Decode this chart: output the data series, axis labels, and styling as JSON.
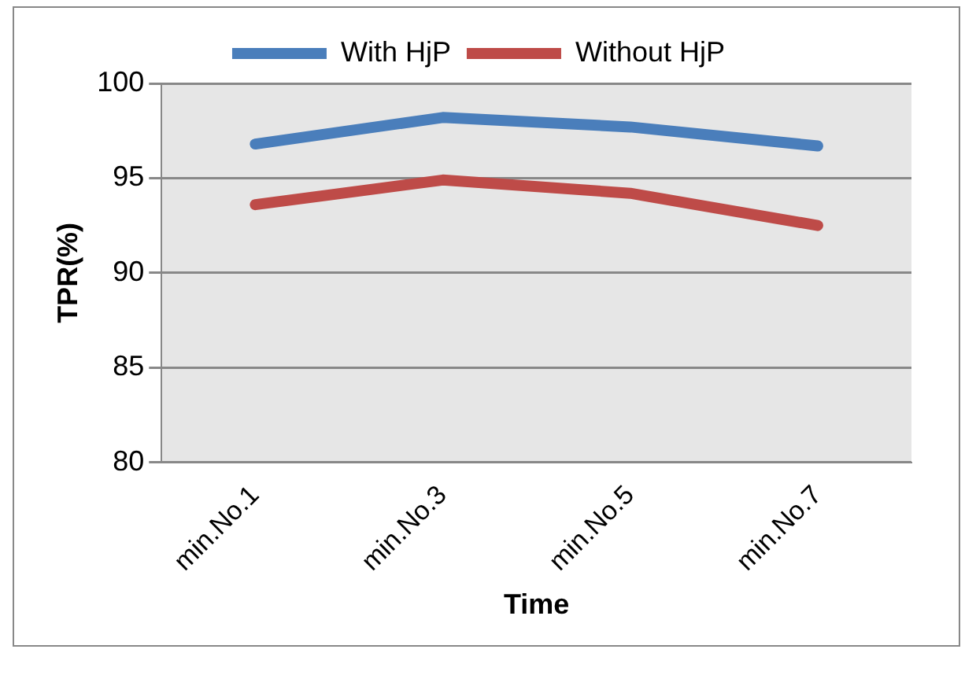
{
  "chart_data": {
    "type": "line",
    "xlabel": "Time",
    "ylabel": "TPR(%)",
    "categories": [
      "min.No.1",
      "min.No.3",
      "min.No.5",
      "min.No.7"
    ],
    "series": [
      {
        "name": "With HjP",
        "color": "#4a7ebb",
        "values": [
          96.8,
          98.2,
          97.7,
          96.7
        ]
      },
      {
        "name": "Without HjP",
        "color": "#be4b48",
        "values": [
          93.6,
          94.9,
          94.2,
          92.5
        ]
      }
    ],
    "ylim": [
      80,
      100
    ],
    "yticks": [
      80,
      85,
      90,
      95,
      100
    ],
    "grid": "y",
    "legend": "top",
    "marker": "none"
  }
}
